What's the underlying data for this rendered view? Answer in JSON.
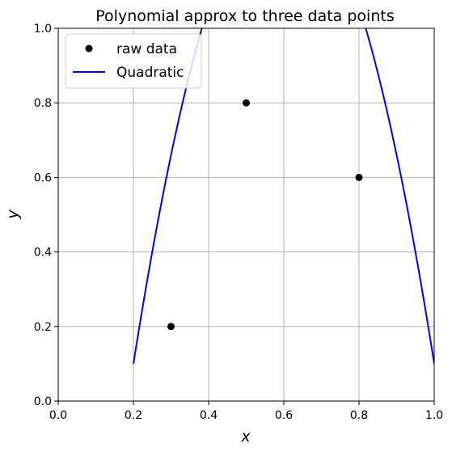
{
  "chart_data": {
    "type": "line",
    "title": "Polynomial approx to three data points",
    "xlabel": "x",
    "ylabel": "y",
    "xlim": [
      0.0,
      1.0
    ],
    "ylim": [
      0.0,
      1.0
    ],
    "xticks": [
      "0.0",
      "0.2",
      "0.4",
      "0.6",
      "0.8",
      "1.0"
    ],
    "yticks": [
      "0.0",
      "0.2",
      "0.4",
      "0.6",
      "0.8",
      "1.0"
    ],
    "grid": true,
    "legend_position": "top-left",
    "series": [
      {
        "name": "raw data",
        "kind": "scatter",
        "color": "#000000",
        "x": [
          0.3,
          0.5,
          0.8
        ],
        "y": [
          0.2,
          0.8,
          0.6
        ]
      },
      {
        "name": "Quadratic",
        "kind": "line",
        "color": "#0000ff",
        "coefficients": [
          -1.5,
          9.6,
          -8.0
        ]
      }
    ]
  }
}
